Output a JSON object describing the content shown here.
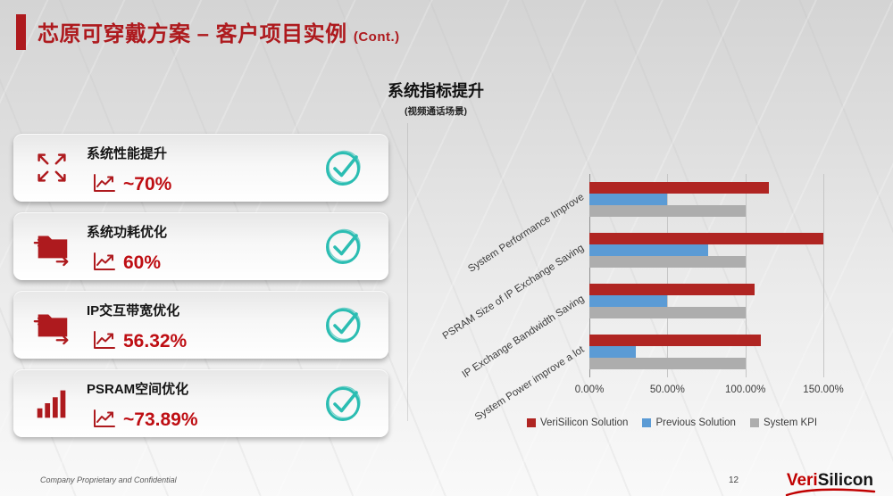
{
  "slide": {
    "title": "芯原可穿戴方案 – 客户项目实例",
    "title_suffix": "(Cont.)",
    "subtitle": "系统指标提升",
    "subtitle_note": "(视频通话场景)",
    "footer_left": "Company Proprietary and Confidential",
    "page_number": "12",
    "logo_veri": "Veri",
    "logo_silicon": "Silicon"
  },
  "colors": {
    "accent_red": "#AE1A1E",
    "value_red": "#BE0E13",
    "check_teal": "#2BBDB2",
    "bar_red": "#B02522",
    "bar_blue": "#5B9BD5",
    "bar_gray": "#ADADAD"
  },
  "cards": [
    {
      "icon": "expand-arrows-icon",
      "label": "系统性能提升",
      "value": "~70%"
    },
    {
      "icon": "folder-transfer-icon",
      "label": "系统功耗优化",
      "value": "60%"
    },
    {
      "icon": "folder-transfer-icon",
      "label": "IP交互带宽优化",
      "value": "56.32%"
    },
    {
      "icon": "bar-chart-icon",
      "label": "PSRAM空间优化",
      "value": "~73.89%"
    }
  ],
  "chart_data": {
    "type": "bar",
    "orientation": "horizontal",
    "title": "",
    "categories": [
      "System Performance Improve",
      "PSRAM Size of IP Exchange Saving",
      "IP Exchange Bandwidth Saving",
      "System Power improve a lot"
    ],
    "series": [
      {
        "name": "VeriSilicon Solution",
        "color": "#B02522",
        "values": [
          115,
          150,
          106,
          110
        ]
      },
      {
        "name": "Previous Solution",
        "color": "#5B9BD5",
        "values": [
          50,
          76,
          50,
          30
        ]
      },
      {
        "name": "System KPI",
        "color": "#ADADAD",
        "values": [
          100,
          100,
          100,
          100
        ]
      }
    ],
    "x_ticks": [
      "0.00%",
      "50.00%",
      "100.00%",
      "150.00%"
    ],
    "xlim": [
      0,
      150
    ],
    "grid": true,
    "legend_position": "bottom"
  }
}
